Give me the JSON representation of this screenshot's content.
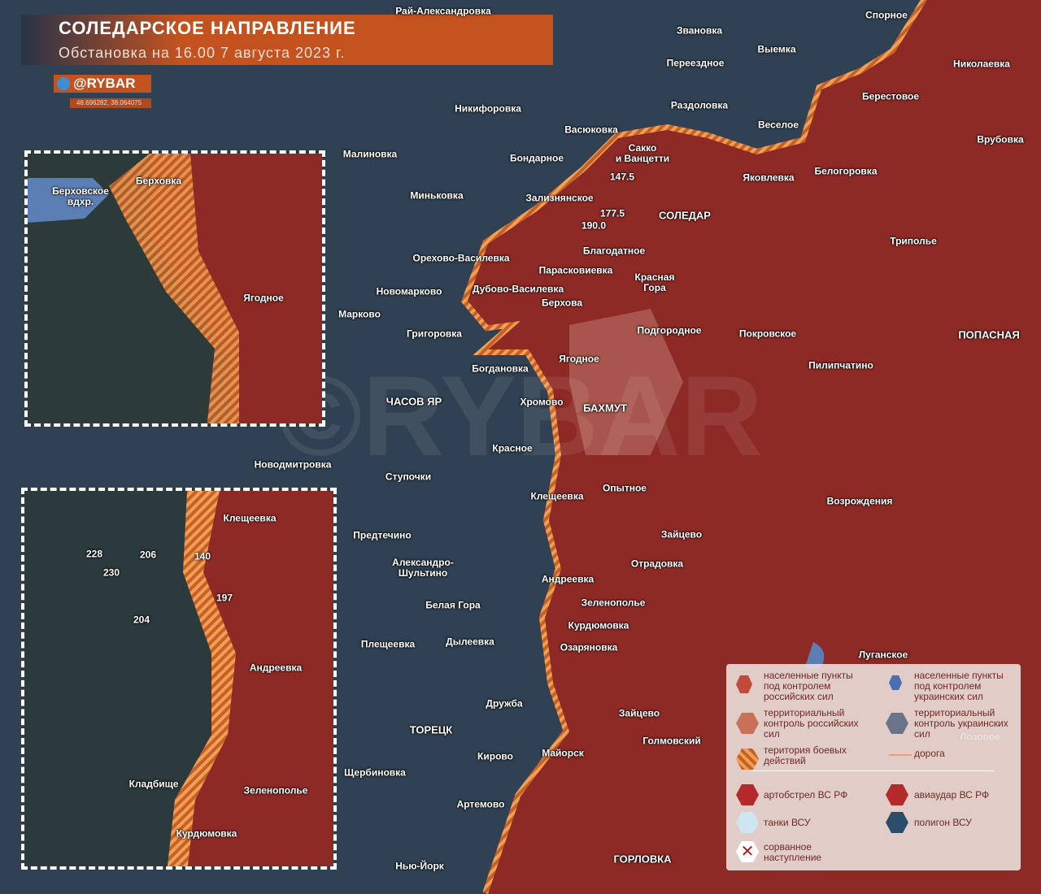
{
  "header": {
    "title": "СОЛЕДАРСКОЕ НАПРАВЛЕНИЕ",
    "subtitle": "Обстановка на 16.00 7 августа 2023 г.",
    "brand": "@RYBAR",
    "coords": "48.696282, 38.064075"
  },
  "colors": {
    "russian_control": "#8e2a26",
    "ukrainian_control": "#2e4257",
    "combat_zone": "#e88a3c",
    "accent": "#c4521f"
  },
  "watermark": "©RYBAR",
  "map_labels": [
    "Рай-Александровка",
    "Спорное",
    "Звановка",
    "Выемка",
    "Николаевка",
    "Переездное",
    "Берестовое",
    "Никифоровка",
    "Раздоловка",
    "Веселое",
    "Васюковка",
    "Сакко\nи Ванцетти",
    "Врубовка",
    "Малиновка",
    "Бондарное",
    "Яковлевка",
    "Белогоровка",
    "147.5",
    "Миньковка",
    "Зализнянское",
    "177.5",
    "СОЛЕДАР",
    "190.0",
    "Благодатное",
    "Триполье",
    "Орехово-Василевка",
    "Парасковиевка",
    "Красная\nГора",
    "Новомарково",
    "Дубово-Василевка",
    "Марково",
    "Берхова",
    "Григоровка",
    "Подгородное",
    "Покровское",
    "ПОПАСНАЯ",
    "Богдановка",
    "Ягодное",
    "Пилипчатино",
    "ЧАСОВ ЯР",
    "Хромово",
    "БАХМУТ",
    "Красное",
    "Новодмитровка",
    "Ступочки",
    "Опытное",
    "Клещеевка",
    "Возрождения",
    "Предтечино",
    "Зайцево",
    "Александро-\nШультино",
    "Отрадовка",
    "Андреевка",
    "Белая Гора",
    "Зеленополье",
    "Курдюмовка",
    "Плещеевка",
    "Дылеевка",
    "Озаряновка",
    "Луганское",
    "Дружба",
    "Зайцево",
    "ТОРЕЦК",
    "Голмовский",
    "Кирово",
    "Майорск",
    "Щербиновка",
    "Артемово",
    "ГОРЛОВКА",
    "Нью-Йорк",
    "Лозовое"
  ],
  "inset1_labels": [
    "Берховка",
    "Берховское\nвдхр.",
    "Ягодное"
  ],
  "inset2_labels": [
    "Клещеевка",
    "228",
    "206",
    "230",
    "140",
    "197",
    "204",
    "Андреевка",
    "Кладбище",
    "Зеленополье",
    "Курдюмовка"
  ],
  "legend": {
    "ru_settlements": "населенные пункты\nпод контролем\nроссийских сил",
    "ua_settlements": "населенные пункты\nпод контролем\nукраинских сил",
    "ru_territory": "территориальный\nконтроль российских\nсил",
    "ua_territory": "территориальный\nконтроль украинских\nсил",
    "combat": "територия боевых\nдействий",
    "road": "дорога",
    "artillery": "артобстрел ВС РФ",
    "airstrike": "авиаудар ВС РФ",
    "tanks": "танки ВСУ",
    "range": "полигон ВСУ",
    "failed": "сорванное\nнаступление"
  }
}
